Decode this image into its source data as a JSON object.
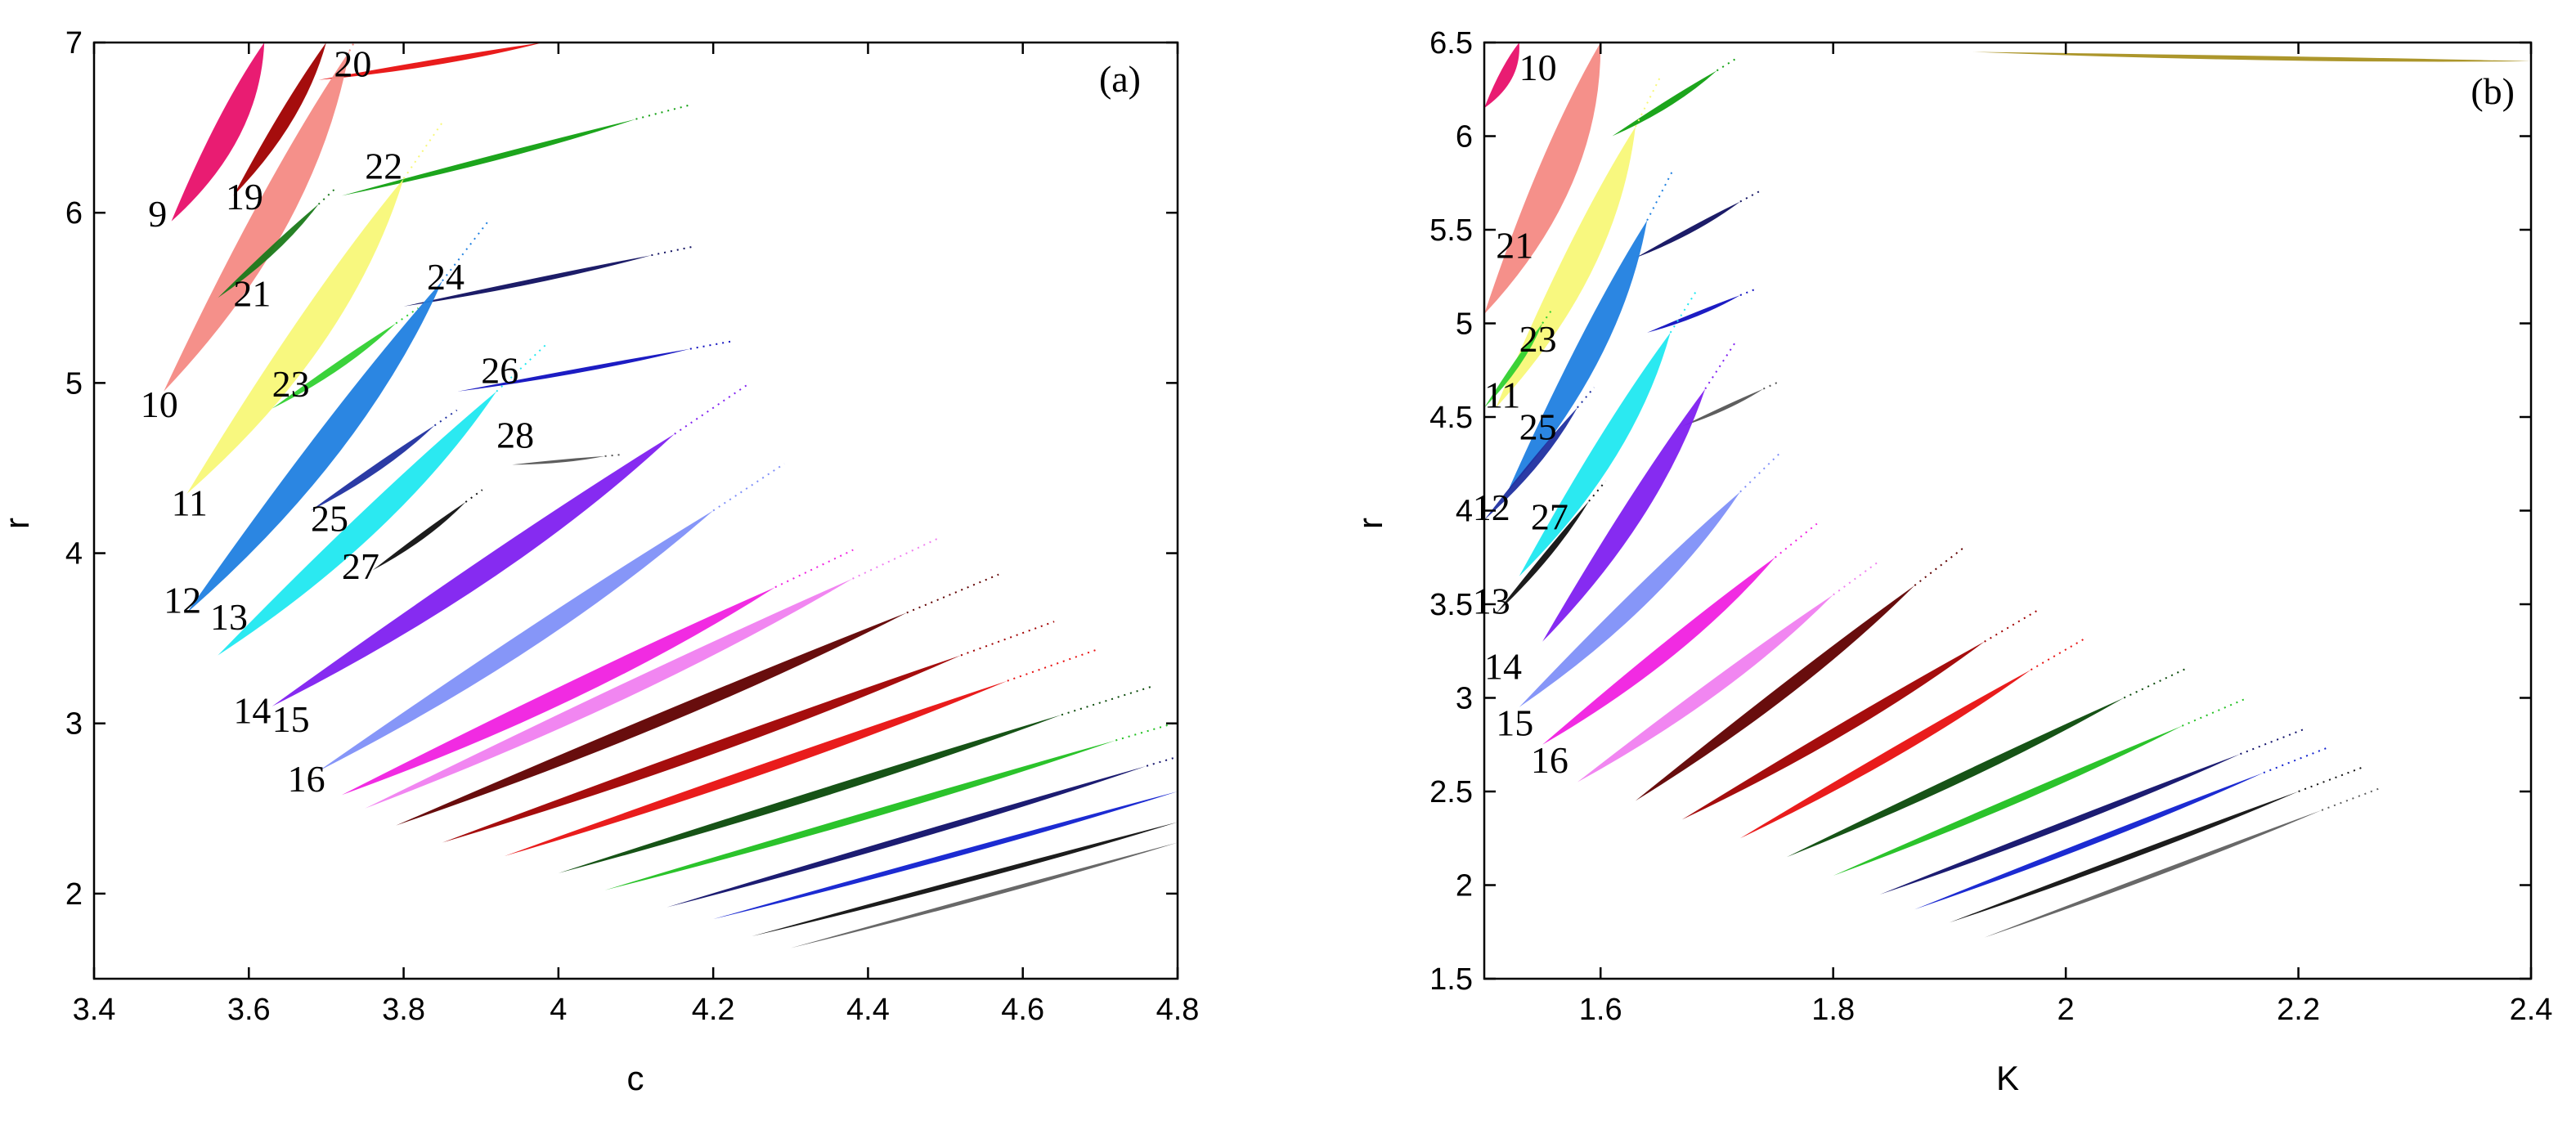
{
  "chart_data": [
    {
      "type": "scatter",
      "title": "",
      "panel_label": "(a)",
      "xlabel": "c",
      "ylabel": "r",
      "xlim": [
        3.4,
        4.8
      ],
      "ylim": [
        1.5,
        7
      ],
      "xticks": [
        3.4,
        3.6,
        3.8,
        4,
        4.2,
        4.4,
        4.6,
        4.8
      ],
      "xtick_labels": [
        "3.4",
        "3.6",
        "3.8",
        "4",
        "4.2",
        "4.4",
        "4.6",
        "4.8"
      ],
      "yticks": [
        2,
        3,
        4,
        5,
        6,
        7
      ],
      "ytick_labels": [
        "2",
        "3",
        "4",
        "5",
        "6",
        "7"
      ],
      "regions": [
        {
          "label": "9",
          "color": "#e8106a",
          "apex": [
            3.5,
            5.95
          ],
          "tip": [
            3.62,
            7.0
          ],
          "width": 0.55,
          "label_at": [
            3.47,
            5.92
          ]
        },
        {
          "label": "19",
          "color": "#a00000",
          "apex": [
            3.58,
            6.1
          ],
          "tip": [
            3.7,
            7.0
          ],
          "width": 0.3,
          "label_at": [
            3.57,
            6.02
          ]
        },
        {
          "label": "20",
          "color": "#e81010",
          "apex": [
            3.69,
            6.78
          ],
          "tip": [
            3.98,
            7.0
          ],
          "width": 0.12,
          "label_at": [
            3.71,
            6.8
          ]
        },
        {
          "label": "10",
          "color": "#f48a84",
          "apex": [
            3.49,
            4.95
          ],
          "tip": [
            3.73,
            6.95
          ],
          "width": 0.75,
          "label_at": [
            3.46,
            4.8
          ]
        },
        {
          "label": "21",
          "color": "#1a7a1a",
          "apex": [
            3.56,
            5.5
          ],
          "tip": [
            3.69,
            6.05
          ],
          "width": 0.15,
          "label_at": [
            3.58,
            5.45
          ]
        },
        {
          "label": "22",
          "color": "#10a010",
          "apex": [
            3.72,
            6.1
          ],
          "tip": [
            4.1,
            6.55
          ],
          "width": 0.12,
          "label_at": [
            3.75,
            6.2
          ]
        },
        {
          "label": "11",
          "color": "#f8f878",
          "apex": [
            3.52,
            4.35
          ],
          "tip": [
            3.8,
            6.2
          ],
          "width": 0.7,
          "label_at": [
            3.5,
            4.22
          ]
        },
        {
          "label": "23",
          "color": "#30d030",
          "apex": [
            3.63,
            4.85
          ],
          "tip": [
            3.79,
            5.35
          ],
          "width": 0.15,
          "label_at": [
            3.63,
            4.92
          ]
        },
        {
          "label": "24",
          "color": "#101060",
          "apex": [
            3.8,
            5.45
          ],
          "tip": [
            4.12,
            5.75
          ],
          "width": 0.1,
          "label_at": [
            3.83,
            5.55
          ]
        },
        {
          "label": "12",
          "color": "#2080e0",
          "apex": [
            3.52,
            3.65
          ],
          "tip": [
            3.85,
            5.6
          ],
          "width": 0.6,
          "label_at": [
            3.49,
            3.65
          ]
        },
        {
          "label": "25",
          "color": "#2030a0",
          "apex": [
            3.68,
            4.25
          ],
          "tip": [
            3.84,
            4.75
          ],
          "width": 0.15,
          "label_at": [
            3.68,
            4.13
          ]
        },
        {
          "label": "26",
          "color": "#1010c0",
          "apex": [
            3.87,
            4.95
          ],
          "tip": [
            4.17,
            5.2
          ],
          "width": 0.09,
          "label_at": [
            3.9,
            5.0
          ]
        },
        {
          "label": "13",
          "color": "#20e8f0",
          "apex": [
            3.56,
            3.4
          ],
          "tip": [
            3.92,
            4.95
          ],
          "width": 0.5,
          "label_at": [
            3.55,
            3.55
          ]
        },
        {
          "label": "27",
          "color": "#101010",
          "apex": [
            3.76,
            3.9
          ],
          "tip": [
            3.88,
            4.3
          ],
          "width": 0.12,
          "label_at": [
            3.72,
            3.85
          ]
        },
        {
          "label": "28",
          "color": "#555555",
          "apex": [
            3.94,
            4.52
          ],
          "tip": [
            4.06,
            4.57
          ],
          "width": 0.06,
          "label_at": [
            3.92,
            4.62
          ]
        },
        {
          "label": "14",
          "color": "#8020f0",
          "apex": [
            3.63,
            3.1
          ],
          "tip": [
            4.15,
            4.7
          ],
          "width": 0.45,
          "label_at": [
            3.58,
            3.0
          ]
        },
        {
          "label": "15",
          "color": "#8090f8",
          "apex": [
            3.69,
            2.72
          ],
          "tip": [
            4.2,
            4.25
          ],
          "width": 0.38,
          "label_at": [
            3.63,
            2.95
          ]
        },
        {
          "label": "16",
          "color": "#f020e0",
          "apex": [
            3.72,
            2.58
          ],
          "tip": [
            4.28,
            3.8
          ],
          "width": 0.35,
          "label_at": [
            3.65,
            2.6
          ]
        },
        {
          "label": "",
          "color": "#f080f0",
          "apex": [
            3.75,
            2.5
          ],
          "tip": [
            4.38,
            3.85
          ],
          "width": 0.3,
          "label_at": [
            0,
            0
          ]
        },
        {
          "label": "",
          "color": "#600000",
          "apex": [
            3.79,
            2.4
          ],
          "tip": [
            4.45,
            3.65
          ],
          "width": 0.26,
          "label_at": [
            0,
            0
          ]
        },
        {
          "label": "",
          "color": "#a00000",
          "apex": [
            3.85,
            2.3
          ],
          "tip": [
            4.52,
            3.4
          ],
          "width": 0.23,
          "label_at": [
            0,
            0
          ]
        },
        {
          "label": "",
          "color": "#e81010",
          "apex": [
            3.93,
            2.22
          ],
          "tip": [
            4.58,
            3.25
          ],
          "width": 0.2,
          "label_at": [
            0,
            0
          ]
        },
        {
          "label": "",
          "color": "#0a4a0a",
          "apex": [
            4.0,
            2.12
          ],
          "tip": [
            4.65,
            3.05
          ],
          "width": 0.17,
          "label_at": [
            0,
            0
          ]
        },
        {
          "label": "",
          "color": "#20c020",
          "apex": [
            4.06,
            2.02
          ],
          "tip": [
            4.72,
            2.9
          ],
          "width": 0.15,
          "label_at": [
            0,
            0
          ]
        },
        {
          "label": "",
          "color": "#10106a",
          "apex": [
            4.14,
            1.92
          ],
          "tip": [
            4.76,
            2.75
          ],
          "width": 0.13,
          "label_at": [
            0,
            0
          ]
        },
        {
          "label": "",
          "color": "#1020d0",
          "apex": [
            4.2,
            1.85
          ],
          "tip": [
            4.8,
            2.6
          ],
          "width": 0.11,
          "label_at": [
            0,
            0
          ]
        },
        {
          "label": "",
          "color": "#101010",
          "apex": [
            4.25,
            1.75
          ],
          "tip": [
            4.8,
            2.42
          ],
          "width": 0.1,
          "label_at": [
            0,
            0
          ]
        },
        {
          "label": "",
          "color": "#606060",
          "apex": [
            4.3,
            1.68
          ],
          "tip": [
            4.8,
            2.3
          ],
          "width": 0.08,
          "label_at": [
            0,
            0
          ]
        }
      ]
    },
    {
      "type": "scatter",
      "title": "",
      "panel_label": "(b)",
      "xlabel": "K",
      "ylabel": "r",
      "xlim": [
        1.5,
        2.4
      ],
      "ylim": [
        1.5,
        6.5
      ],
      "xticks": [
        1.6,
        1.8,
        2,
        2.2,
        2.4
      ],
      "xtick_labels": [
        "1.6",
        "1.8",
        "2",
        "2.2",
        "2.4"
      ],
      "yticks": [
        1.5,
        2,
        2.5,
        3,
        3.5,
        4,
        4.5,
        5,
        5.5,
        6,
        6.5
      ],
      "ytick_labels": [
        "1.5",
        "2",
        "2.5",
        "3",
        "3.5",
        "4",
        "4.5",
        "5",
        "5.5",
        "6",
        "6.5"
      ],
      "regions": [
        {
          "label": "",
          "color": "#e8106a",
          "apex": [
            1.5,
            6.15
          ],
          "tip": [
            1.53,
            6.5
          ],
          "width": 0.25,
          "label_at": [
            0,
            0
          ]
        },
        {
          "label": "10",
          "color": "#f48a84",
          "apex": [
            1.5,
            5.05
          ],
          "tip": [
            1.6,
            6.5
          ],
          "width": 0.7,
          "label_at": [
            1.53,
            6.3
          ]
        },
        {
          "label": "",
          "color": "#10a010",
          "apex": [
            1.61,
            6.0
          ],
          "tip": [
            1.7,
            6.35
          ],
          "width": 0.12,
          "label_at": [
            0,
            0
          ]
        },
        {
          "label": "21",
          "color": "#f8f878",
          "apex": [
            1.51,
            4.55
          ],
          "tip": [
            1.63,
            6.05
          ],
          "width": 0.6,
          "label_at": [
            1.51,
            5.35
          ]
        },
        {
          "label": "",
          "color": "#101060",
          "apex": [
            1.63,
            5.35
          ],
          "tip": [
            1.72,
            5.65
          ],
          "width": 0.1,
          "label_at": [
            0,
            0
          ]
        },
        {
          "label": "23",
          "color": "#2080e0",
          "apex": [
            1.52,
            4.1
          ],
          "tip": [
            1.64,
            5.55
          ],
          "width": 0.5,
          "label_at": [
            1.53,
            4.85
          ]
        },
        {
          "label": "11",
          "color": "#30d030",
          "apex": [
            1.5,
            4.55
          ],
          "tip": [
            1.55,
            5.0
          ],
          "width": 0.12,
          "label_at": [
            1.5,
            4.55
          ]
        },
        {
          "label": "",
          "color": "#1010c0",
          "apex": [
            1.64,
            4.95
          ],
          "tip": [
            1.72,
            5.15
          ],
          "width": 0.08,
          "label_at": [
            0,
            0
          ]
        },
        {
          "label": "25",
          "color": "#20e8f0",
          "apex": [
            1.53,
            3.65
          ],
          "tip": [
            1.66,
            4.95
          ],
          "width": 0.45,
          "label_at": [
            1.53,
            4.38
          ]
        },
        {
          "label": "12",
          "color": "#2030a0",
          "apex": [
            1.5,
            3.95
          ],
          "tip": [
            1.58,
            4.55
          ],
          "width": 0.15,
          "label_at": [
            1.49,
            3.95
          ]
        },
        {
          "label": "",
          "color": "#555555",
          "apex": [
            1.67,
            4.45
          ],
          "tip": [
            1.74,
            4.65
          ],
          "width": 0.07,
          "label_at": [
            0,
            0
          ]
        },
        {
          "label": "27",
          "color": "#8020f0",
          "apex": [
            1.55,
            3.3
          ],
          "tip": [
            1.69,
            4.65
          ],
          "width": 0.4,
          "label_at": [
            1.54,
            3.9
          ]
        },
        {
          "label": "13",
          "color": "#101010",
          "apex": [
            1.51,
            3.45
          ],
          "tip": [
            1.59,
            4.05
          ],
          "width": 0.12,
          "label_at": [
            1.49,
            3.45
          ]
        },
        {
          "label": "14",
          "color": "#8090f8",
          "apex": [
            1.53,
            2.95
          ],
          "tip": [
            1.72,
            4.1
          ],
          "width": 0.35,
          "label_at": [
            1.5,
            3.1
          ]
        },
        {
          "label": "15",
          "color": "#f020e0",
          "apex": [
            1.55,
            2.75
          ],
          "tip": [
            1.75,
            3.75
          ],
          "width": 0.3,
          "label_at": [
            1.51,
            2.8
          ]
        },
        {
          "label": "16",
          "color": "#f080f0",
          "apex": [
            1.58,
            2.55
          ],
          "tip": [
            1.8,
            3.55
          ],
          "width": 0.27,
          "label_at": [
            1.54,
            2.6
          ]
        },
        {
          "label": "",
          "color": "#600000",
          "apex": [
            1.63,
            2.45
          ],
          "tip": [
            1.87,
            3.6
          ],
          "width": 0.24,
          "label_at": [
            0,
            0
          ]
        },
        {
          "label": "",
          "color": "#a00000",
          "apex": [
            1.67,
            2.35
          ],
          "tip": [
            1.93,
            3.3
          ],
          "width": 0.21,
          "label_at": [
            0,
            0
          ]
        },
        {
          "label": "",
          "color": "#e81010",
          "apex": [
            1.72,
            2.25
          ],
          "tip": [
            1.97,
            3.15
          ],
          "width": 0.18,
          "label_at": [
            0,
            0
          ]
        },
        {
          "label": "",
          "color": "#0a4a0a",
          "apex": [
            1.76,
            2.15
          ],
          "tip": [
            2.05,
            3.0
          ],
          "width": 0.16,
          "label_at": [
            0,
            0
          ]
        },
        {
          "label": "",
          "color": "#20c020",
          "apex": [
            1.8,
            2.05
          ],
          "tip": [
            2.1,
            2.85
          ],
          "width": 0.14,
          "label_at": [
            0,
            0
          ]
        },
        {
          "label": "",
          "color": "#10106a",
          "apex": [
            1.84,
            1.95
          ],
          "tip": [
            2.15,
            2.7
          ],
          "width": 0.12,
          "label_at": [
            0,
            0
          ]
        },
        {
          "label": "",
          "color": "#1020d0",
          "apex": [
            1.87,
            1.87
          ],
          "tip": [
            2.17,
            2.6
          ],
          "width": 0.11,
          "label_at": [
            0,
            0
          ]
        },
        {
          "label": "",
          "color": "#101010",
          "apex": [
            1.9,
            1.8
          ],
          "tip": [
            2.2,
            2.5
          ],
          "width": 0.1,
          "label_at": [
            0,
            0
          ]
        },
        {
          "label": "",
          "color": "#606060",
          "apex": [
            1.93,
            1.72
          ],
          "tip": [
            2.22,
            2.4
          ],
          "width": 0.08,
          "label_at": [
            0,
            0
          ]
        },
        {
          "label": "",
          "color": "#a89020",
          "apex": [
            1.92,
            6.45
          ],
          "tip": [
            2.4,
            6.4
          ],
          "width": 0.08,
          "label_at": [
            0,
            0
          ]
        }
      ]
    }
  ]
}
